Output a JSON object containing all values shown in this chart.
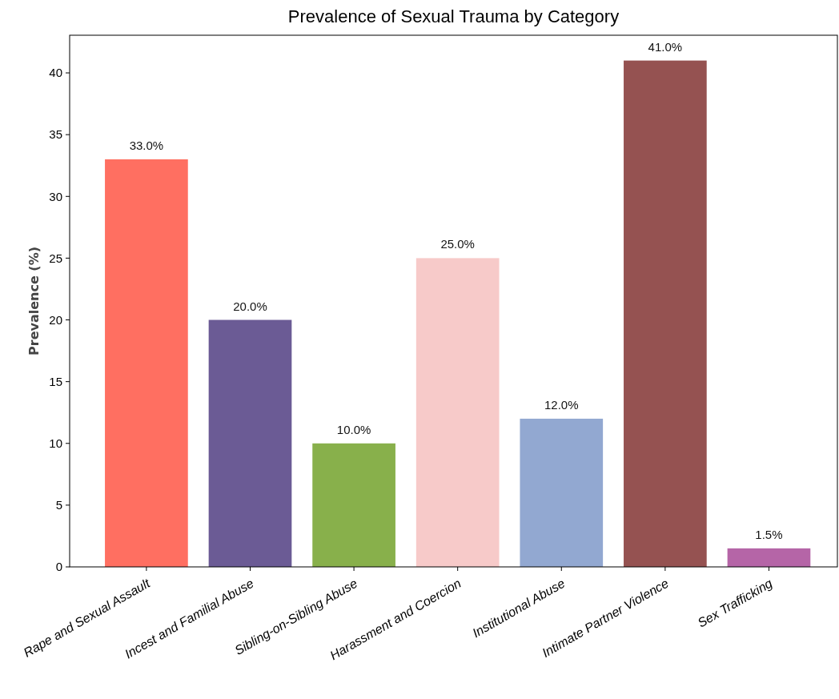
{
  "chart_data": {
    "type": "bar",
    "title": "Prevalence of Sexual Trauma by Category",
    "ylabel": "Prevalence (%)",
    "categories": [
      "Rape and Sexual Assault",
      "Incest and Familial Abuse",
      "Sibling-on-Sibling Abuse",
      "Harassment and Coercion",
      "Institutional Abuse",
      "Intimate Partner Violence",
      "Sex Trafficking"
    ],
    "values": [
      33,
      20,
      10,
      25,
      12,
      41,
      1.5
    ],
    "colors": [
      "#ff6f61",
      "#6b5b95",
      "#88b04b",
      "#f7cac9",
      "#92a8d1",
      "#955251",
      "#b565a7"
    ],
    "value_labels": [
      "33.0%",
      "20.0%",
      "10.0%",
      "25.0%",
      "12.0%",
      "41.0%",
      "1.5%"
    ],
    "ylim": [
      0,
      43.05
    ],
    "yticks": [
      0,
      5,
      10,
      15,
      20,
      25,
      30,
      35,
      40
    ],
    "grid": false
  }
}
